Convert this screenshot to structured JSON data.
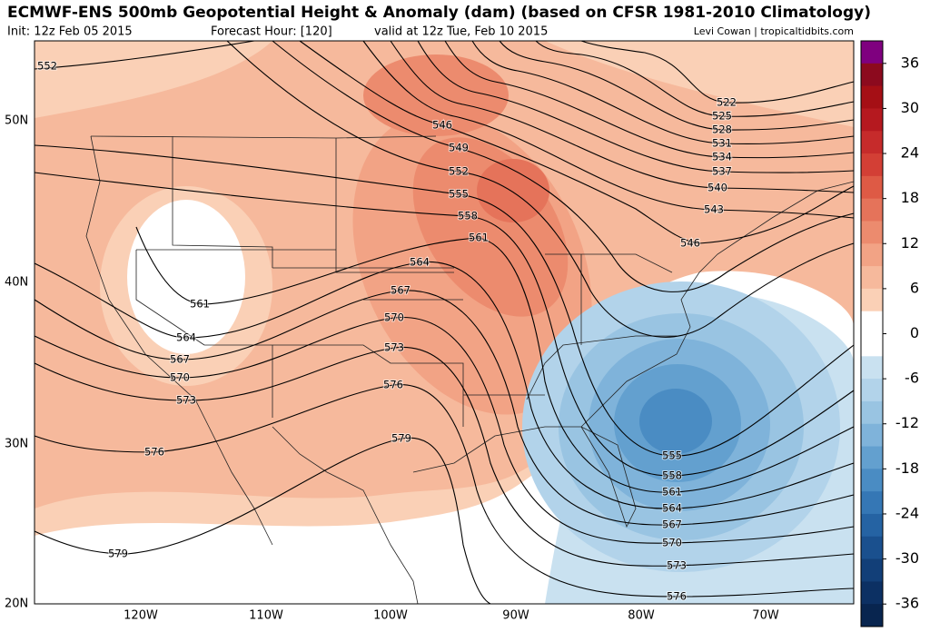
{
  "header": {
    "title": "ECMWF-ENS 500mb Geopotential Height & Anomaly (dam) (based on CFSR 1981-2010 Climatology)",
    "init": "Init: 12z Feb 05 2015",
    "forecast_hour": "Forecast Hour: [120]",
    "valid": "valid at 12z Tue, Feb 10 2015",
    "credit": "Levi Cowan | tropicaltidbits.com"
  },
  "map": {
    "lat_labels": [
      "50N",
      "40N",
      "30N",
      "20N"
    ],
    "lon_labels": [
      "120W",
      "110W",
      "100W",
      "90W",
      "80W",
      "70W"
    ],
    "contour_labels": [
      552,
      546,
      549,
      552,
      555,
      558,
      561,
      564,
      567,
      570,
      573,
      576,
      579,
      546,
      555,
      558,
      561,
      564,
      567,
      570,
      573,
      576,
      561,
      564,
      567,
      570,
      573,
      576,
      579,
      522,
      525,
      528,
      531,
      534,
      537,
      540,
      543
    ]
  },
  "colorbar": {
    "lim": [
      -39,
      39
    ],
    "ticks": [
      36,
      30,
      24,
      18,
      12,
      6,
      0,
      -6,
      -12,
      -18,
      -24,
      -30,
      -36
    ],
    "colors": [
      "#7f007f",
      "#8c0a1e",
      "#a50f15",
      "#b5191f",
      "#c62b2b",
      "#d33f35",
      "#de5a45",
      "#e5735a",
      "#ec8b6e",
      "#f2a385",
      "#f6b99c",
      "#fad0b6",
      "#ffffff",
      "#ffffff",
      "#c9e1f0",
      "#b2d3ea",
      "#99c4e2",
      "#7fb3da",
      "#63a0cf",
      "#4a8cc3",
      "#3577b5",
      "#2563a3",
      "#1a508e",
      "#123f78",
      "#0c3063",
      "#08254f"
    ]
  }
}
